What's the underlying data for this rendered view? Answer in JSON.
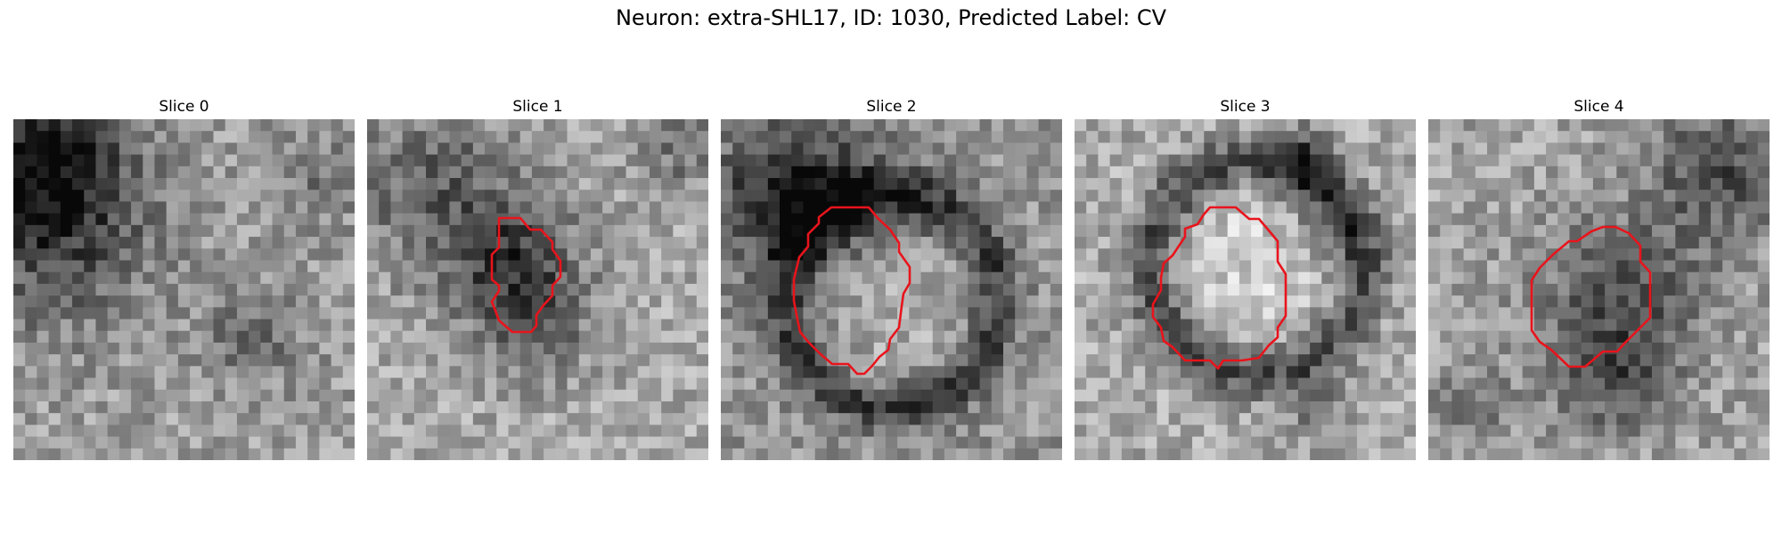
{
  "figure": {
    "title": "Neuron: extra-SHL17, ID: 1030, Predicted Label: CV"
  },
  "panels": [
    {
      "title": "Slice 0",
      "has_contour": false
    },
    {
      "title": "Slice 1",
      "has_contour": true
    },
    {
      "title": "Slice 2",
      "has_contour": true
    },
    {
      "title": "Slice 3",
      "has_contour": true
    },
    {
      "title": "Slice 4",
      "has_contour": true
    }
  ],
  "colors": {
    "contour": "#e8141c",
    "background": "#ffffff"
  }
}
